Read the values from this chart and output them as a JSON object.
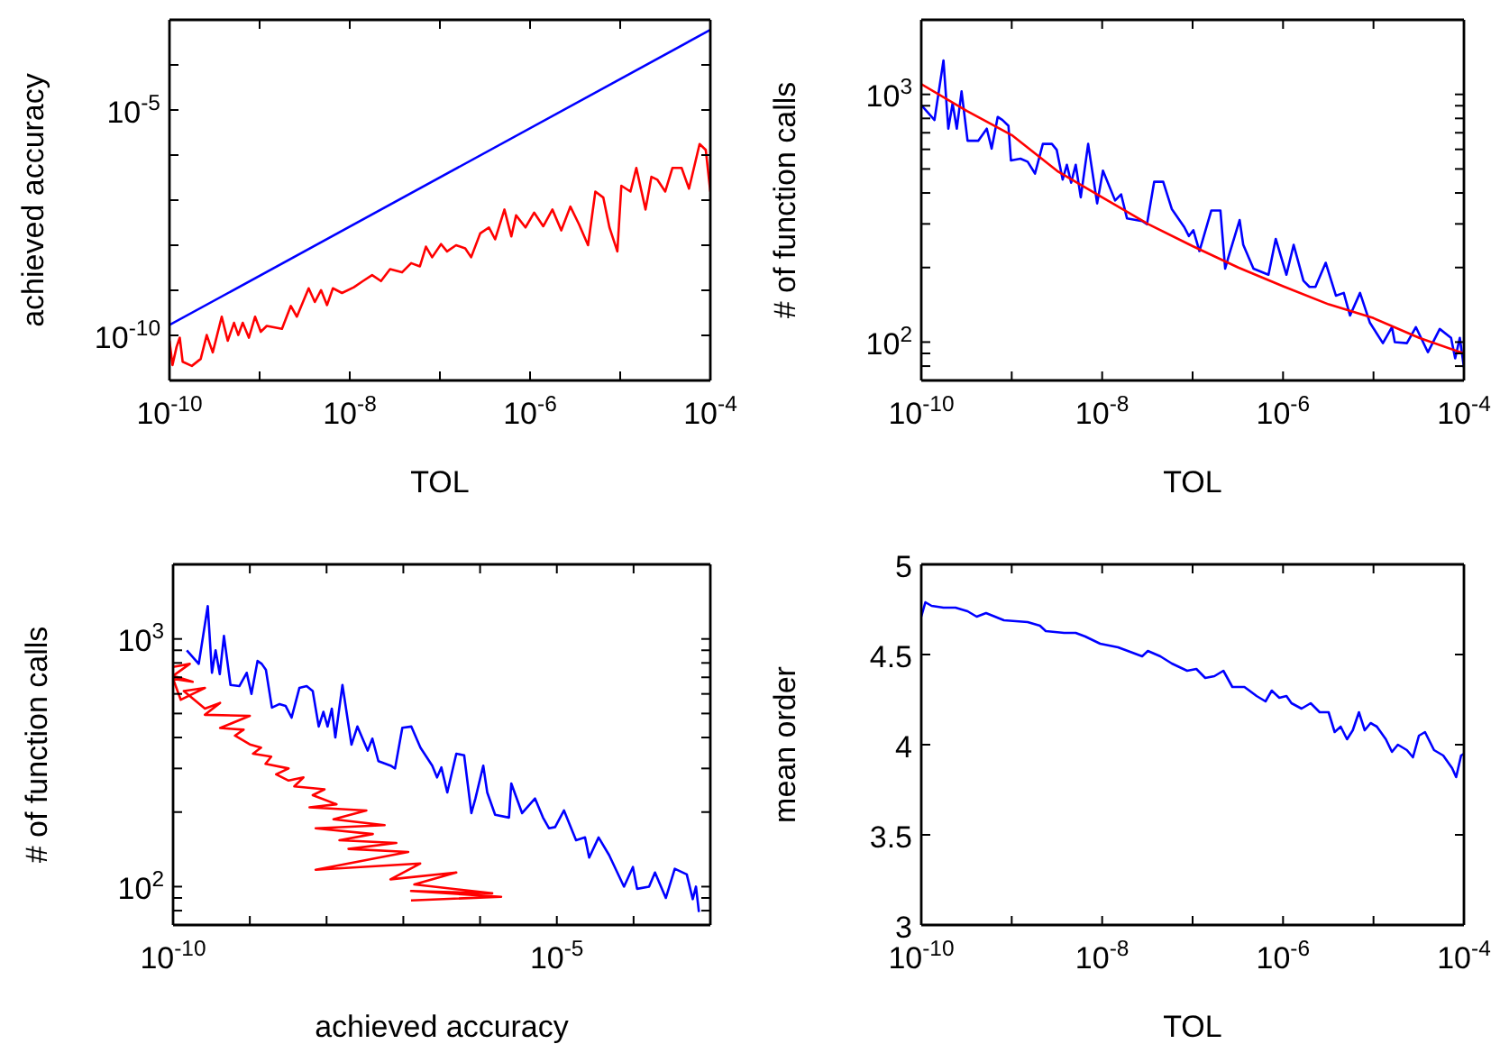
{
  "chart_data": [
    {
      "type": "line",
      "xlabel": "TOL",
      "ylabel": "achieved accuracy",
      "log": "xy",
      "xlim": [
        1e-10,
        0.0001
      ],
      "ylim": [
        1e-11,
        0.001
      ],
      "xticks": [
        {
          "value": 1e-10,
          "label": "10$^{-10}$"
        },
        {
          "value": 1e-09,
          "label": null
        },
        {
          "value": 1e-08,
          "label": "10$^{-8}$"
        },
        {
          "value": 1e-07,
          "label": null
        },
        {
          "value": 1e-06,
          "label": "10$^{-6}$"
        },
        {
          "value": 1e-05,
          "label": null
        },
        {
          "value": 0.0001,
          "label": "10$^{-4}$"
        }
      ],
      "yticks": [
        {
          "value": 1e-10,
          "label": "10$^{-10}$"
        },
        {
          "value": 1e-09,
          "label": null
        },
        {
          "value": 1e-08,
          "label": null
        },
        {
          "value": 1e-07,
          "label": null
        },
        {
          "value": 1e-06,
          "label": null
        },
        {
          "value": 1e-05,
          "label": "10$^{-5}$"
        },
        {
          "value": 0.0001,
          "label": null
        }
      ],
      "series": [
        {
          "color": "#0000ff",
          "x": [
            1e-10,
            0.0001
          ],
          "values": [
            1.7e-10,
            0.0006
          ]
        },
        {
          "color": "#ff0000",
          "x": [
            1e-10,
            1.08e-10,
            1.2e-10,
            1.3e-10,
            1.4e-10,
            1.77e-10,
            2.22e-10,
            2.59e-10,
            3.02e-10,
            3.8e-10,
            4.43e-10,
            5.2e-10,
            5.8e-10,
            6.5e-10,
            7.6e-10,
            8.9e-10,
            1.03e-09,
            1.2e-09,
            1.77e-09,
            2.22e-09,
            2.59e-09,
            3.5e-09,
            4.1e-09,
            4.8e-09,
            5.6e-09,
            6.5e-09,
            8.2e-09,
            1.11e-08,
            1.4e-08,
            1.77e-08,
            2.22e-08,
            2.8e-08,
            3.8e-08,
            4.8e-08,
            6e-08,
            7e-08,
            8.2e-08,
            1.03e-07,
            1.2e-07,
            1.51e-07,
            1.91e-07,
            2.22e-07,
            2.8e-07,
            3.5e-07,
            4.1e-07,
            5.2e-07,
            6.2e-07,
            7e-07,
            8.9e-07,
            1.11e-06,
            1.4e-06,
            1.77e-06,
            2.22e-06,
            2.8e-06,
            3.5e-06,
            4.4e-06,
            5.3e-06,
            6.5e-06,
            7.6e-06,
            9.3e-06,
            1.03e-05,
            1.3e-05,
            1.51e-05,
            1.91e-05,
            2.22e-05,
            2.59e-05,
            3.16e-05,
            3.8e-05,
            4.8e-05,
            5.8e-05,
            7.6e-05,
            8.9e-05,
            0.0001
          ],
          "values": [
            7.6e-11,
            2.2e-11,
            5.6e-11,
            8.9e-11,
            2.6e-11,
            2.1e-11,
            3e-11,
            1.02e-10,
            4.2e-11,
            2.6e-10,
            7.6e-11,
            1.9e-10,
            1.02e-10,
            1.9e-10,
            8.9e-11,
            2.6e-10,
            1.2e-10,
            1.62e-10,
            1.4e-10,
            4.5e-10,
            2.6e-10,
            1.11e-09,
            5.5e-10,
            1.01e-09,
            4.7e-10,
            1.11e-09,
            8.7e-10,
            1.17e-09,
            1.6e-09,
            2.17e-09,
            1.6e-09,
            2.95e-09,
            2.5e-09,
            4e-09,
            3.4e-09,
            9.3e-09,
            5.4e-09,
            1.06e-08,
            7.3e-09,
            1e-08,
            8.5e-09,
            5.4e-09,
            1.83e-08,
            2.48e-08,
            1.35e-08,
            6.2e-08,
            1.57e-08,
            4.6e-08,
            2.48e-08,
            5.3e-08,
            2.63e-08,
            6.2e-08,
            2.13e-08,
            7.2e-08,
            2.88e-08,
            1e-08,
            1.55e-07,
            1.14e-07,
            2.48e-08,
            7.3e-09,
            2.09e-07,
            1.55e-07,
            5.2e-07,
            6.2e-08,
            3.3e-07,
            2.83e-07,
            1.55e-07,
            5.2e-07,
            5.2e-07,
            1.8e-07,
            1.76e-06,
            1.3e-06,
            1.55e-07
          ]
        }
      ]
    },
    {
      "type": "line",
      "xlabel": "TOL",
      "ylabel": "# of function calls",
      "log": "xy",
      "xlim": [
        1e-10,
        0.0001
      ],
      "ylim": [
        70,
        2000
      ],
      "xticks": [
        {
          "value": 1e-10,
          "label": "10$^{-10}$"
        },
        {
          "value": 1e-09,
          "label": null
        },
        {
          "value": 1e-08,
          "label": "10$^{-8}$"
        },
        {
          "value": 1e-07,
          "label": null
        },
        {
          "value": 1e-06,
          "label": "10$^{-6}$"
        },
        {
          "value": 1e-05,
          "label": null
        },
        {
          "value": 0.0001,
          "label": "10$^{-4}$"
        }
      ],
      "yticks": [
        {
          "value": 80,
          "label": null
        },
        {
          "value": 90,
          "label": null
        },
        {
          "value": 100,
          "label": "10$^{2}$"
        },
        {
          "value": 200,
          "label": null
        },
        {
          "value": 300,
          "label": null
        },
        {
          "value": 400,
          "label": null
        },
        {
          "value": 500,
          "label": null
        },
        {
          "value": 600,
          "label": null
        },
        {
          "value": 700,
          "label": null
        },
        {
          "value": 800,
          "label": null
        },
        {
          "value": 900,
          "label": null
        },
        {
          "value": 1000,
          "label": "10$^{3}$"
        }
      ],
      "series": [
        {
          "color": "#0000ff",
          "x": [
            1e-10,
            1.4e-10,
            1.76e-10,
            1.99e-10,
            2.22e-10,
            2.47e-10,
            2.79e-10,
            3.25e-10,
            4.28e-10,
            5.3e-10,
            6e-10,
            7e-10,
            7.9e-10,
            9.2e-10,
            9.8e-10,
            1.25e-09,
            1.5e-09,
            1.81e-09,
            2.21e-09,
            2.78e-09,
            3.14e-09,
            3.66e-09,
            4.07e-09,
            4.54e-09,
            5.1e-09,
            5.8e-09,
            7e-09,
            8.8e-09,
            1.02e-08,
            1.39e-08,
            1.62e-08,
            1.88e-08,
            2.77e-08,
            3.13e-08,
            3.76e-08,
            4.73e-08,
            5.9e-08,
            8.1e-08,
            9.1e-08,
            1.02e-07,
            1.19e-07,
            1.61e-07,
            2.03e-07,
            2.29e-07,
            2.55e-07,
            3.31e-07,
            3.63e-07,
            4.71e-07,
            6.9e-07,
            8.3e-07,
            1.09e-06,
            1.31e-06,
            1.68e-06,
            1.96e-06,
            2.28e-06,
            2.96e-06,
            3.84e-06,
            4.69e-06,
            5.5e-06,
            7.1e-06,
            9.1e-06,
            1.27e-05,
            1.6e-05,
            1.72e-05,
            2.34e-05,
            2.94e-05,
            4e-05,
            5.4e-05,
            7.2e-05,
            8e-05,
            9e-05,
            0.0001
          ],
          "values": [
            905,
            788,
            1371,
            727,
            920,
            727,
            1028,
            650,
            650,
            727,
            604,
            811,
            788,
            747,
            541,
            550,
            535,
            479,
            631,
            631,
            598,
            453,
            520,
            440,
            520,
            384,
            631,
            363,
            492,
            373,
            395,
            316,
            308,
            299,
            444,
            444,
            344,
            291,
            268,
            283,
            233,
            340,
            340,
            198,
            227,
            311,
            247,
            198,
            187,
            261,
            187,
            247,
            177,
            167,
            167,
            209,
            154,
            158,
            128,
            158,
            120,
            99,
            115,
            100,
            99,
            115,
            91,
            113,
            104,
            86,
            104,
            79
          ]
        },
        {
          "color": "#ff0000",
          "x": [
            1e-10,
            3.2e-10,
            1e-09,
            3.2e-09,
            1e-08,
            3.2e-08,
            1e-07,
            3.2e-07,
            1e-06,
            3.2e-06,
            1e-05,
            3.2e-05,
            0.0001
          ],
          "values": [
            1100,
            857,
            685,
            490,
            384,
            300,
            244,
            200,
            168,
            142,
            125,
            104,
            90
          ]
        }
      ]
    },
    {
      "type": "line",
      "xlabel": "achieved accuracy",
      "ylabel": "# of function calls",
      "log": "xy",
      "xlim": [
        1e-10,
        0.001
      ],
      "ylim": [
        70,
        2000
      ],
      "xticks": [
        {
          "value": 1e-10,
          "label": "10$^{-10}$"
        },
        {
          "value": 1e-09,
          "label": null
        },
        {
          "value": 1e-08,
          "label": null
        },
        {
          "value": 1e-07,
          "label": null
        },
        {
          "value": 1e-06,
          "label": null
        },
        {
          "value": 1e-05,
          "label": "10$^{-5}$"
        },
        {
          "value": 0.0001,
          "label": null
        }
      ],
      "yticks": [
        {
          "value": 80,
          "label": null
        },
        {
          "value": 90,
          "label": null
        },
        {
          "value": 100,
          "label": "10$^{2}$"
        },
        {
          "value": 200,
          "label": null
        },
        {
          "value": 300,
          "label": null
        },
        {
          "value": 400,
          "label": null
        },
        {
          "value": 500,
          "label": null
        },
        {
          "value": 600,
          "label": null
        },
        {
          "value": 700,
          "label": null
        },
        {
          "value": 800,
          "label": null
        },
        {
          "value": 900,
          "label": null
        },
        {
          "value": 1000,
          "label": "10$^{3}$"
        }
      ],
      "series": [
        {
          "color": "#0000ff",
          "x": [
            1.51e-10,
            2.16e-10,
            2.83e-10,
            3.21e-10,
            3.58e-10,
            4.06e-10,
            4.6e-10,
            5.6e-10,
            7.3e-10,
            9.1e-10,
            1.05e-09,
            1.26e-09,
            1.43e-09,
            1.62e-09,
            1.94e-09,
            2.44e-09,
            2.92e-09,
            3.5e-09,
            4.42e-09,
            5.5e-09,
            6.6e-09,
            7.9e-09,
            9.1e-09,
            1.03e-08,
            1.17e-08,
            1.3e-08,
            1.61e-08,
            2.11e-08,
            2.52e-08,
            3.43e-08,
            3.95e-08,
            4.73e-08,
            6.8e-08,
            7.8e-08,
            9.7e-08,
            1.27e-07,
            1.67e-07,
            2.38e-07,
            2.75e-07,
            3.13e-07,
            3.74e-07,
            4.9e-07,
            6.2e-07,
            7.7e-07,
            8.7e-07,
            1.1e-06,
            1.24e-06,
            1.57e-06,
            2.38e-06,
            2.55e-06,
            3.53e-06,
            5.2e-06,
            6.6e-06,
            7.9e-06,
            9.5e-06,
            1.24e-05,
            1.78e-05,
            2.33e-05,
            2.64e-05,
            3.5e-05,
            4.8e-05,
            7.5e-05,
            9.8e-05,
            0.000111,
            0.000159,
            0.00019,
            0.000263,
            0.000344,
            0.000493,
            0.00059,
            0.00065,
            0.00071
          ],
          "values": [
            900,
            793,
            1358,
            730,
            900,
            721,
            1028,
            652,
            645,
            730,
            600,
            815,
            793,
            750,
            528,
            546,
            537,
            481,
            634,
            645,
            616,
            443,
            508,
            443,
            523,
            400,
            652,
            374,
            443,
            354,
            396,
            321,
            308,
            300,
            438,
            443,
            364,
            308,
            276,
            303,
            240,
            344,
            339,
            198,
            227,
            308,
            240,
            195,
            190,
            261,
            198,
            227,
            190,
            172,
            174,
            203,
            154,
            158,
            131,
            158,
            134,
            100,
            120,
            98,
            100,
            114,
            90,
            118,
            112,
            89,
            100,
            79
          ]
        },
        {
          "color": "#ff0000",
          "x": [
            1e-10,
            1.65e-10,
            1e-10,
            1.8e-10,
            1e-10,
            1.26e-10,
            2.6e-10,
            1.38e-10,
            2.6e-10,
            4.1e-10,
            2.6e-10,
            1e-09,
            4.1e-10,
            8.3e-10,
            6.4e-10,
            1e-09,
            1.4e-09,
            1.1e-09,
            1.9e-09,
            1.6e-09,
            3.2e-09,
            2.2e-09,
            3.2e-09,
            5e-09,
            3.8e-09,
            9.4e-09,
            6.6e-09,
            1.35e-08,
            6e-09,
            3.3e-08,
            1.23e-08,
            5.7e-08,
            7.2e-09,
            4e-08,
            1.47e-08,
            8.1e-08,
            1.93e-08,
            1.16e-07,
            7.2e-09,
            1.66e-07,
            6.8e-08,
            4.9e-07,
            1.39e-07,
            1.44e-06,
            1.26e-07,
            1.88e-06,
            1.26e-07
          ],
          "values": [
            771,
            793,
            710,
            671,
            690,
            568,
            634,
            616,
            523,
            552,
            494,
            489,
            437,
            430,
            407,
            375,
            364,
            344,
            335,
            313,
            300,
            284,
            268,
            276,
            254,
            247,
            234,
            215,
            209,
            203,
            187,
            177,
            172,
            163,
            154,
            150,
            142,
            138,
            117,
            124,
            107,
            114,
            102,
            94,
            96,
            91,
            88
          ]
        }
      ]
    },
    {
      "type": "line",
      "xlabel": "TOL",
      "ylabel": "mean order",
      "log": "x",
      "xlim": [
        1e-10,
        0.0001
      ],
      "ylim": [
        3,
        5
      ],
      "xticks": [
        {
          "value": 1e-10,
          "label": "10$^{-10}$"
        },
        {
          "value": 1e-09,
          "label": null
        },
        {
          "value": 1e-08,
          "label": "10$^{-8}$"
        },
        {
          "value": 1e-07,
          "label": null
        },
        {
          "value": 1e-06,
          "label": "10$^{-6}$"
        },
        {
          "value": 1e-05,
          "label": null
        },
        {
          "value": 0.0001,
          "label": "10$^{-4}$"
        }
      ],
      "yticks": [
        3,
        3.5,
        4,
        4.5,
        5
      ],
      "series": [
        {
          "color": "#0000ff",
          "x": [
            1e-10,
            1.11e-10,
            1.3e-10,
            1.76e-10,
            2.39e-10,
            3.25e-10,
            4.1e-10,
            5.2e-10,
            8.2e-10,
            1.5e-09,
            2.05e-09,
            2.38e-09,
            3.8e-09,
            5.1e-09,
            6.5e-09,
            9.5e-09,
            1.5e-08,
            2.77e-08,
            3.2e-08,
            4.4e-08,
            5.9e-08,
            8.7e-08,
            1.1e-07,
            1.38e-07,
            1.74e-07,
            2.19e-07,
            2.75e-07,
            3.74e-07,
            5.1e-07,
            6.4e-07,
            7.5e-07,
            9.1e-07,
            1.09e-06,
            1.24e-06,
            1.6e-06,
            2.02e-06,
            2.54e-06,
            3.19e-06,
            3.72e-06,
            4.34e-06,
            5.1e-06,
            5.9e-06,
            6.9e-06,
            8e-06,
            9.3e-06,
            1.09e-05,
            1.37e-05,
            1.6e-05,
            1.86e-05,
            2.34e-05,
            2.73e-05,
            3.18e-05,
            3.71e-05,
            4.67e-05,
            5.9e-05,
            7.4e-05,
            8.2e-05,
            9.3e-05,
            0.0001
          ],
          "values": [
            4.71,
            4.79,
            4.77,
            4.76,
            4.76,
            4.74,
            4.71,
            4.73,
            4.69,
            4.68,
            4.66,
            4.63,
            4.62,
            4.62,
            4.6,
            4.56,
            4.54,
            4.49,
            4.52,
            4.49,
            4.45,
            4.41,
            4.42,
            4.37,
            4.38,
            4.41,
            4.32,
            4.32,
            4.27,
            4.24,
            4.3,
            4.26,
            4.27,
            4.23,
            4.2,
            4.23,
            4.18,
            4.18,
            4.07,
            4.1,
            4.03,
            4.08,
            4.18,
            4.08,
            4.12,
            4.1,
            4.03,
            3.96,
            4.0,
            3.97,
            3.93,
            4.05,
            4.07,
            3.97,
            3.94,
            3.87,
            3.82,
            3.94,
            3.95
          ]
        }
      ]
    }
  ]
}
